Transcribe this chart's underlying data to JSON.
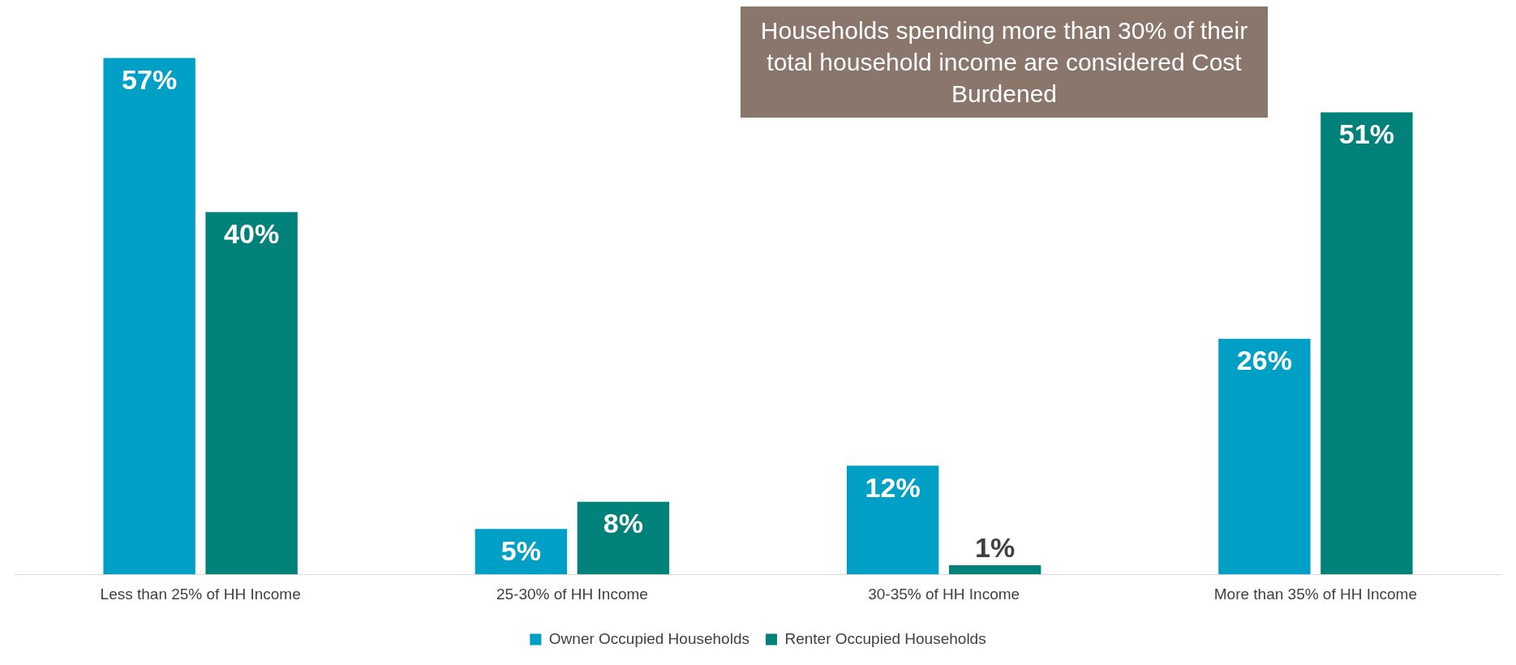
{
  "chart_data": {
    "type": "bar",
    "categories": [
      "Less than 25% of HH Income",
      "25-30% of HH Income",
      "30-35% of HH Income",
      "More than 35% of HH Income"
    ],
    "series": [
      {
        "name": "Owner Occupied Households",
        "color": "#00a0c6",
        "values": [
          57,
          5,
          12,
          26
        ],
        "value_labels": [
          "57%",
          "5%",
          "12%",
          "26%"
        ]
      },
      {
        "name": "Renter Occupied Households",
        "color": "#00827a",
        "values": [
          40,
          8,
          1,
          51
        ],
        "value_labels": [
          "40%",
          "8%",
          "1%",
          "51%"
        ]
      }
    ],
    "legend": "bottom",
    "grid": false,
    "annotations": [
      "Households spending more than 30% of their total household income are considered Cost Burdened"
    ]
  }
}
